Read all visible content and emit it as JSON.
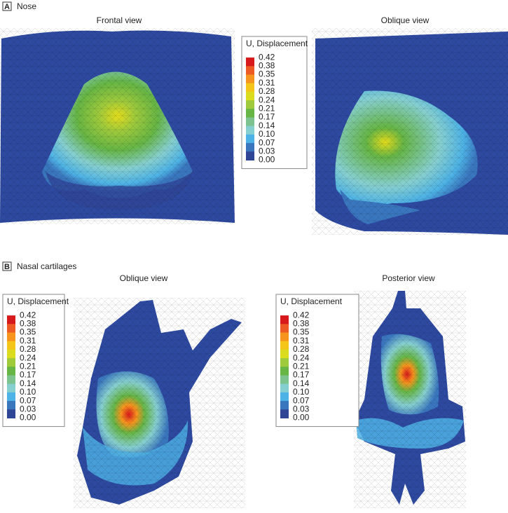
{
  "panels": [
    {
      "label": "A",
      "title": "Nose",
      "views": [
        "Frontal view",
        "Oblique view"
      ],
      "legends": [
        {
          "title": "U, Displacement",
          "levels": [
            "0.42",
            "0.38",
            "0.35",
            "0.31",
            "0.28",
            "0.24",
            "0.21",
            "0.17",
            "0.14",
            "0.10",
            "0.07",
            "0.03",
            "0.00"
          ]
        }
      ]
    },
    {
      "label": "B",
      "title": "Nasal cartilages",
      "views": [
        "Oblique view",
        "Posterior view"
      ],
      "legends": [
        {
          "title": "U, Displacement",
          "levels": [
            "0.42",
            "0.38",
            "0.35",
            "0.31",
            "0.28",
            "0.24",
            "0.21",
            "0.17",
            "0.14",
            "0.10",
            "0.07",
            "0.03",
            "0.00"
          ]
        },
        {
          "title": "U, Displacement",
          "levels": [
            "0.42",
            "0.38",
            "0.35",
            "0.31",
            "0.28",
            "0.24",
            "0.21",
            "0.17",
            "0.14",
            "0.10",
            "0.07",
            "0.03",
            "0.00"
          ]
        }
      ]
    }
  ],
  "colorscale": [
    "#d7191c",
    "#ee5a24",
    "#f7941d",
    "#f3c619",
    "#dcdc1e",
    "#9fca3c",
    "#66b545",
    "#7cc38f",
    "#86cfd0",
    "#4db2e5",
    "#3a76be",
    "#2f4596"
  ]
}
